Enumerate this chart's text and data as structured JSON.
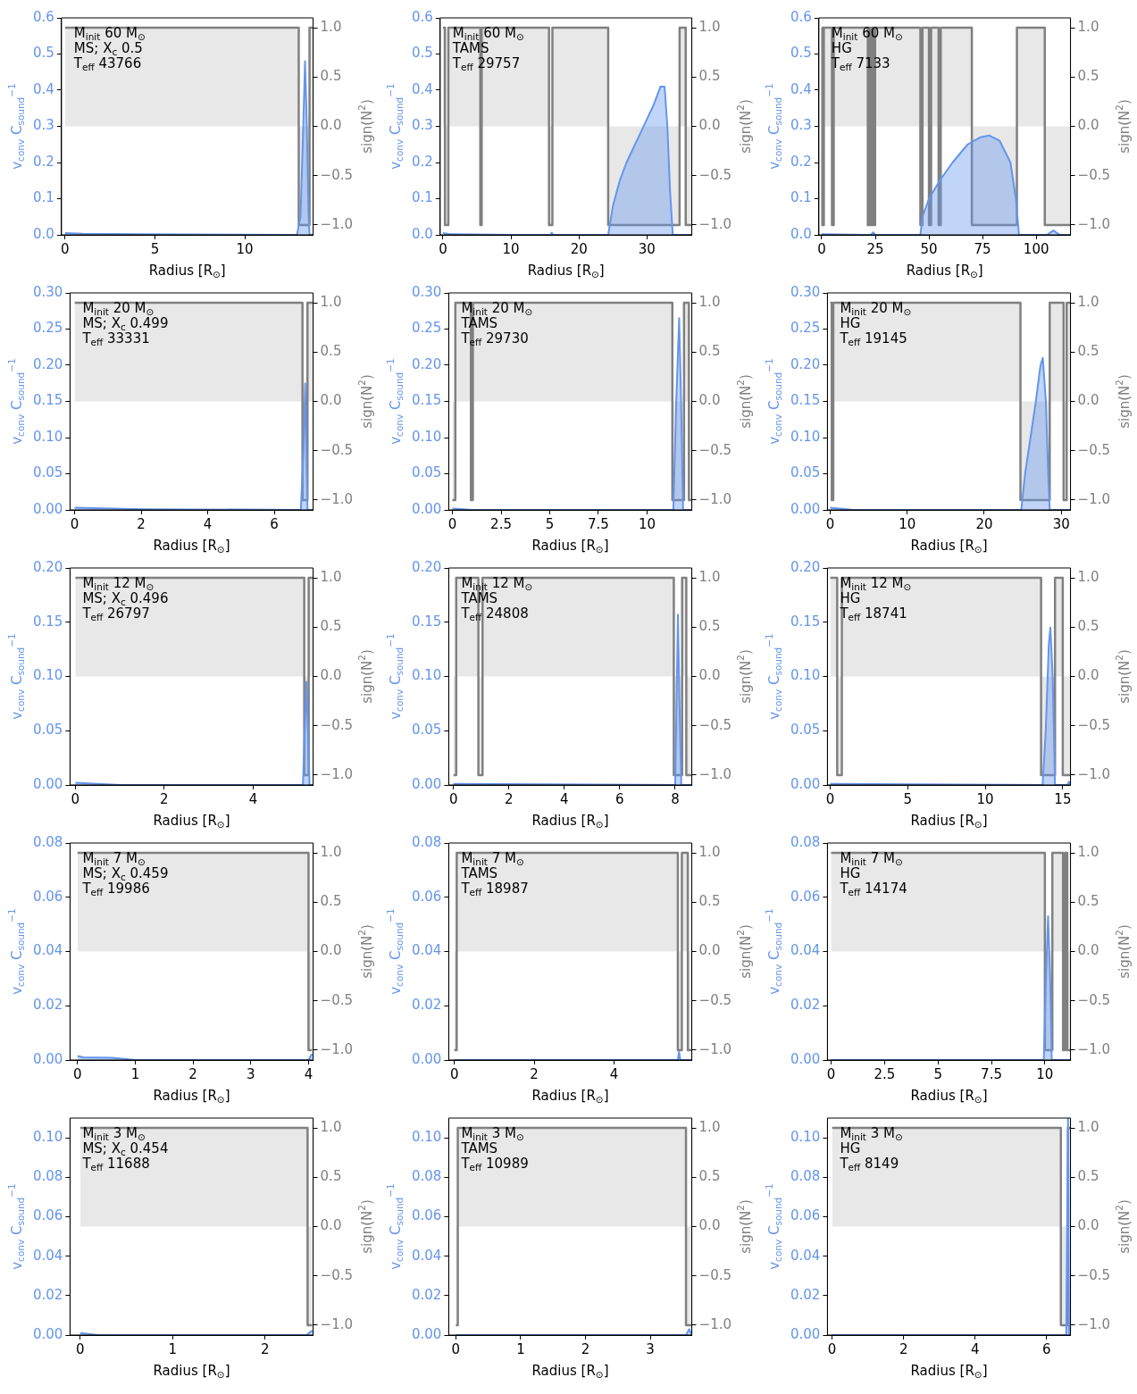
{
  "chart_data": [
    {
      "type": "line",
      "xlabel": "Radius [R$_{⊙}$]",
      "ylabel": "v$_{conv}$ C$_{sound}$$^{−1}$",
      "y2label": "sign(N$^{2}$)",
      "annotations": [
        "M$_{init}$ 60 M$_{⊙}$",
        "MS; X$_{c}$ 0.5",
        "T$_{eff}$ 43766"
      ],
      "xlim": [
        -0.2,
        13.8
      ],
      "xticks": [
        0,
        5,
        10
      ],
      "ylim": [
        0,
        0.6
      ],
      "yticks": [
        {
          "value": 0,
          "label": "0.0"
        },
        {
          "value": 0.1,
          "label": "0.1"
        },
        {
          "value": 0.2,
          "label": "0.2"
        },
        {
          "value": 0.3,
          "label": "0.3"
        },
        {
          "value": 0.4,
          "label": "0.4"
        },
        {
          "value": 0.5,
          "label": "0.5"
        },
        {
          "value": 0.6,
          "label": "0.6"
        }
      ],
      "y2lim": [
        -1.1,
        1.1
      ],
      "y2ticks": [
        {
          "value": -1,
          "label": "−1.0"
        },
        {
          "value": -0.5,
          "label": "−0.5"
        },
        {
          "value": 0,
          "label": "0.0"
        },
        {
          "value": 0.5,
          "label": "0.5"
        },
        {
          "value": 1,
          "label": "1.0"
        }
      ],
      "series": [
        {
          "type": "area",
          "color": "#6495ed",
          "x": [
            0,
            1,
            4,
            12.9,
            13.1,
            13.25,
            13.35,
            13.45,
            13.55,
            13.6,
            13.8
          ],
          "values": [
            0.005,
            0.003,
            0.002,
            0,
            0.05,
            0.3,
            0.48,
            0.3,
            0.05,
            0,
            0
          ]
        },
        {
          "type": "step",
          "axis": "y2",
          "color": "#808080",
          "x": [
            0,
            13.0,
            13.6,
            13.8
          ],
          "values": [
            1,
            -1,
            1,
            1
          ]
        }
      ]
    },
    {
      "type": "line",
      "xlabel": "Radius [R$_{⊙}$]",
      "ylabel": "v$_{conv}$ C$_{sound}$$^{−1}$",
      "y2label": "sign(N$^{2}$)",
      "annotations": [
        "M$_{init}$ 60 M$_{⊙}$",
        "TAMS",
        "T$_{eff}$ 29757"
      ],
      "xlim": [
        -0.4,
        36.6
      ],
      "xticks": [
        0,
        10,
        20,
        30
      ],
      "ylim": [
        0,
        0.6
      ],
      "yticks": [
        {
          "value": 0,
          "label": "0.0"
        },
        {
          "value": 0.1,
          "label": "0.1"
        },
        {
          "value": 0.2,
          "label": "0.2"
        },
        {
          "value": 0.3,
          "label": "0.3"
        },
        {
          "value": 0.4,
          "label": "0.4"
        },
        {
          "value": 0.5,
          "label": "0.5"
        },
        {
          "value": 0.6,
          "label": "0.6"
        }
      ],
      "y2lim": [
        -1.1,
        1.1
      ],
      "y2ticks": [
        {
          "value": -1,
          "label": "−1.0"
        },
        {
          "value": -0.5,
          "label": "−0.5"
        },
        {
          "value": 0,
          "label": "0.0"
        },
        {
          "value": 0.5,
          "label": "0.5"
        },
        {
          "value": 1,
          "label": "1.0"
        }
      ],
      "series": [
        {
          "type": "area",
          "color": "#6495ed",
          "x": [
            0,
            1,
            10,
            15.8,
            16,
            16.2,
            24.3,
            25,
            26,
            27,
            28,
            29,
            30,
            31,
            32,
            32.6,
            33,
            33.4,
            33.8,
            36.6
          ],
          "values": [
            0.005,
            0.002,
            0,
            0,
            0.006,
            0,
            0,
            0.08,
            0.15,
            0.2,
            0.24,
            0.28,
            0.32,
            0.36,
            0.41,
            0.41,
            0.3,
            0.12,
            0,
            0
          ]
        },
        {
          "type": "step",
          "axis": "y2",
          "color": "#808080",
          "x": [
            0,
            0.3,
            0.8,
            5.5,
            5.7,
            15.6,
            16.1,
            24.3,
            34.8,
            35.7,
            36.6
          ],
          "values": [
            1,
            -1,
            1,
            -1,
            1,
            -1,
            1,
            -1,
            1,
            -1,
            -1
          ]
        }
      ]
    },
    {
      "type": "line",
      "xlabel": "Radius [R$_{⊙}$]",
      "ylabel": "v$_{conv}$ C$_{sound}$$^{−1}$",
      "y2label": "sign(N$^{2}$)",
      "annotations": [
        "M$_{init}$ 60 M$_{⊙}$",
        "HG",
        "T$_{eff}$ 7133"
      ],
      "xlim": [
        -1.3,
        116
      ],
      "xticks": [
        0,
        25,
        50,
        75,
        100
      ],
      "ylim": [
        0,
        0.6
      ],
      "yticks": [
        {
          "value": 0,
          "label": "0.0"
        },
        {
          "value": 0.1,
          "label": "0.1"
        },
        {
          "value": 0.2,
          "label": "0.2"
        },
        {
          "value": 0.3,
          "label": "0.3"
        },
        {
          "value": 0.4,
          "label": "0.4"
        },
        {
          "value": 0.5,
          "label": "0.5"
        },
        {
          "value": 0.6,
          "label": "0.6"
        }
      ],
      "y2lim": [
        -1.1,
        1.1
      ],
      "y2ticks": [
        {
          "value": -1,
          "label": "−1.0"
        },
        {
          "value": -0.5,
          "label": "−0.5"
        },
        {
          "value": 0,
          "label": "0.0"
        },
        {
          "value": 0.5,
          "label": "0.5"
        },
        {
          "value": 1,
          "label": "1.0"
        }
      ],
      "series": [
        {
          "type": "area",
          "color": "#6495ed",
          "x": [
            0,
            20,
            23,
            24,
            25,
            45,
            46,
            47,
            50,
            55,
            61,
            68,
            74,
            78,
            83,
            88,
            90.5,
            92,
            105,
            108,
            111,
            116
          ],
          "values": [
            0.002,
            0,
            0,
            0.007,
            0,
            0,
            0,
            0.05,
            0.1,
            0.15,
            0.2,
            0.25,
            0.27,
            0.275,
            0.26,
            0.2,
            0.1,
            0,
            0,
            0.012,
            0,
            0
          ]
        },
        {
          "type": "step",
          "axis": "y2",
          "color": "#808080",
          "x": [
            0,
            0.3,
            1,
            4.8,
            5.6,
            21.5,
            22.3,
            22.8,
            23.6,
            24.2,
            24.9,
            46,
            47,
            50,
            51,
            54.5,
            55.5,
            70,
            91,
            104,
            116
          ],
          "values": [
            1,
            -1,
            1,
            -1,
            1,
            -1,
            1,
            -1,
            1,
            -1,
            1,
            -1,
            1,
            -1,
            1,
            -1,
            1,
            -1,
            1,
            -1,
            -1
          ]
        }
      ]
    },
    {
      "type": "line",
      "xlabel": "Radius [R$_{⊙}$]",
      "ylabel": "v$_{conv}$ C$_{sound}$$^{−1}$",
      "y2label": "sign(N$^{2}$)",
      "annotations": [
        "M$_{init}$ 20 M$_{⊙}$",
        "MS; X$_{c}$ 0.499",
        "T$_{eff}$ 33331"
      ],
      "xlim": [
        -0.14,
        7.17
      ],
      "xticks": [
        0,
        2,
        4,
        6
      ],
      "ylim": [
        0,
        0.3
      ],
      "yticks": [
        {
          "value": 0,
          "label": "0.00"
        },
        {
          "value": 0.05,
          "label": "0.05"
        },
        {
          "value": 0.1,
          "label": "0.10"
        },
        {
          "value": 0.15,
          "label": "0.15"
        },
        {
          "value": 0.2,
          "label": "0.20"
        },
        {
          "value": 0.25,
          "label": "0.25"
        },
        {
          "value": 0.3,
          "label": "0.30"
        }
      ],
      "y2lim": [
        -1.1,
        1.1
      ],
      "y2ticks": [
        {
          "value": -1,
          "label": "−1.0"
        },
        {
          "value": -0.5,
          "label": "−0.5"
        },
        {
          "value": 0,
          "label": "0.0"
        },
        {
          "value": 0.5,
          "label": "0.5"
        },
        {
          "value": 1,
          "label": "1.0"
        }
      ],
      "series": [
        {
          "type": "area",
          "color": "#6495ed",
          "x": [
            0,
            2,
            6.8,
            6.88,
            6.93,
            6.97,
            7.0,
            7.17
          ],
          "values": [
            0.003,
            0.001,
            0,
            0.08,
            0.175,
            0.08,
            0,
            0
          ]
        },
        {
          "type": "step",
          "axis": "y2",
          "color": "#808080",
          "x": [
            0,
            6.85,
            7.0,
            7.17
          ],
          "values": [
            1,
            -1,
            1,
            1
          ]
        }
      ]
    },
    {
      "type": "line",
      "xlabel": "Radius [R$_{⊙}$]",
      "ylabel": "v$_{conv}$ C$_{sound}$$^{−1}$",
      "y2label": "sign(N$^{2}$)",
      "annotations": [
        "M$_{init}$ 20 M$_{⊙}$",
        "TAMS",
        "T$_{eff}$ 29730"
      ],
      "xlim": [
        -0.19,
        12.3
      ],
      "xticks": [
        0,
        2.5,
        5,
        7.5,
        10
      ],
      "ylim": [
        0,
        0.3
      ],
      "yticks": [
        {
          "value": 0,
          "label": "0.00"
        },
        {
          "value": 0.05,
          "label": "0.05"
        },
        {
          "value": 0.1,
          "label": "0.10"
        },
        {
          "value": 0.15,
          "label": "0.15"
        },
        {
          "value": 0.2,
          "label": "0.20"
        },
        {
          "value": 0.25,
          "label": "0.25"
        },
        {
          "value": 0.3,
          "label": "0.30"
        }
      ],
      "y2lim": [
        -1.1,
        1.1
      ],
      "y2ticks": [
        {
          "value": -1,
          "label": "−1.0"
        },
        {
          "value": -0.5,
          "label": "−0.5"
        },
        {
          "value": 0,
          "label": "0.0"
        },
        {
          "value": 0.5,
          "label": "0.5"
        },
        {
          "value": 1,
          "label": "1.0"
        }
      ],
      "series": [
        {
          "type": "area",
          "color": "#6495ed",
          "x": [
            0,
            1,
            11.35,
            11.5,
            11.65,
            11.75,
            11.85,
            12.3
          ],
          "values": [
            0.002,
            0,
            0,
            0.15,
            0.265,
            0.15,
            0,
            0
          ]
        },
        {
          "type": "step",
          "axis": "y2",
          "color": "#808080",
          "x": [
            0,
            0.15,
            0.95,
            1.05,
            11.3,
            11.9,
            12.15,
            12.3
          ],
          "values": [
            -1,
            1,
            -1,
            1,
            -1,
            1,
            -1,
            -1
          ]
        }
      ]
    },
    {
      "type": "line",
      "xlabel": "Radius [R$_{⊙}$]",
      "ylabel": "v$_{conv}$ C$_{sound}$$^{−1}$",
      "y2label": "sign(N$^{2}$)",
      "annotations": [
        "M$_{init}$ 20 M$_{⊙}$",
        "HG",
        "T$_{eff}$ 19145"
      ],
      "xlim": [
        -0.36,
        31.2
      ],
      "xticks": [
        0,
        10,
        20,
        30
      ],
      "ylim": [
        0,
        0.3
      ],
      "yticks": [
        {
          "value": 0,
          "label": "0.00"
        },
        {
          "value": 0.05,
          "label": "0.05"
        },
        {
          "value": 0.1,
          "label": "0.10"
        },
        {
          "value": 0.15,
          "label": "0.15"
        },
        {
          "value": 0.2,
          "label": "0.20"
        },
        {
          "value": 0.25,
          "label": "0.25"
        },
        {
          "value": 0.3,
          "label": "0.30"
        }
      ],
      "y2lim": [
        -1.1,
        1.1
      ],
      "y2ticks": [
        {
          "value": -1,
          "label": "−1.0"
        },
        {
          "value": -0.5,
          "label": "−0.5"
        },
        {
          "value": 0,
          "label": "0.0"
        },
        {
          "value": 0.5,
          "label": "0.5"
        },
        {
          "value": 1,
          "label": "1.0"
        }
      ],
      "series": [
        {
          "type": "area",
          "color": "#6495ed",
          "x": [
            0,
            3,
            24.8,
            25.3,
            26,
            26.7,
            27.3,
            27.6,
            28,
            28.3,
            28.5,
            31.2
          ],
          "values": [
            0.003,
            0,
            0,
            0.05,
            0.1,
            0.15,
            0.2,
            0.21,
            0.15,
            0.05,
            0,
            0
          ]
        },
        {
          "type": "step",
          "axis": "y2",
          "color": "#808080",
          "x": [
            0,
            0.2,
            0.4,
            24.7,
            28.5,
            30.3,
            30.7,
            31.2
          ],
          "values": [
            1,
            -1,
            1,
            -1,
            1,
            -1,
            1,
            1
          ]
        }
      ]
    },
    {
      "type": "line",
      "xlabel": "Radius [R$_{⊙}$]",
      "ylabel": "v$_{conv}$ C$_{sound}$$^{−1}$",
      "y2label": "sign(N$^{2}$)",
      "annotations": [
        "M$_{init}$ 12 M$_{⊙}$",
        "MS; X$_{c}$ 0.496",
        "T$_{eff}$ 26797"
      ],
      "xlim": [
        -0.12,
        5.35
      ],
      "xticks": [
        0,
        2,
        4
      ],
      "ylim": [
        0,
        0.2
      ],
      "yticks": [
        {
          "value": 0,
          "label": "0.00"
        },
        {
          "value": 0.05,
          "label": "0.05"
        },
        {
          "value": 0.1,
          "label": "0.10"
        },
        {
          "value": 0.15,
          "label": "0.15"
        },
        {
          "value": 0.2,
          "label": "0.20"
        }
      ],
      "y2lim": [
        -1.1,
        1.1
      ],
      "y2ticks": [
        {
          "value": -1,
          "label": "−1.0"
        },
        {
          "value": -0.5,
          "label": "−0.5"
        },
        {
          "value": 0,
          "label": "0.0"
        },
        {
          "value": 0.5,
          "label": "0.5"
        },
        {
          "value": 1,
          "label": "1.0"
        }
      ],
      "series": [
        {
          "type": "area",
          "color": "#6495ed",
          "x": [
            0,
            1,
            5.12,
            5.2,
            5.27,
            5.35
          ],
          "values": [
            0.002,
            0,
            0,
            0.095,
            0,
            0
          ]
        },
        {
          "type": "step",
          "axis": "y2",
          "color": "#808080",
          "x": [
            0,
            5.15,
            5.25,
            5.35
          ],
          "values": [
            1,
            -1,
            1,
            1
          ]
        }
      ]
    },
    {
      "type": "line",
      "xlabel": "Radius [R$_{⊙}$]",
      "ylabel": "v$_{conv}$ C$_{sound}$$^{−1}$",
      "y2label": "sign(N$^{2}$)",
      "annotations": [
        "M$_{init}$ 12 M$_{⊙}$",
        "TAMS",
        "T$_{eff}$ 24808"
      ],
      "xlim": [
        -0.17,
        8.6
      ],
      "xticks": [
        0,
        2,
        4,
        6,
        8
      ],
      "ylim": [
        0,
        0.2
      ],
      "yticks": [
        {
          "value": 0,
          "label": "0.00"
        },
        {
          "value": 0.05,
          "label": "0.05"
        },
        {
          "value": 0.1,
          "label": "0.10"
        },
        {
          "value": 0.15,
          "label": "0.15"
        },
        {
          "value": 0.2,
          "label": "0.20"
        }
      ],
      "y2lim": [
        -1.1,
        1.1
      ],
      "y2ticks": [
        {
          "value": -1,
          "label": "−1.0"
        },
        {
          "value": -0.5,
          "label": "−0.5"
        },
        {
          "value": 0,
          "label": "0.0"
        },
        {
          "value": 0.5,
          "label": "0.5"
        },
        {
          "value": 1,
          "label": "1.0"
        }
      ],
      "series": [
        {
          "type": "area",
          "color": "#6495ed",
          "x": [
            0,
            8,
            8.05,
            8.1,
            8.15,
            8.22,
            8.6
          ],
          "values": [
            0.001,
            0,
            0.08,
            0.157,
            0.08,
            0,
            0
          ]
        },
        {
          "type": "step",
          "axis": "y2",
          "color": "#808080",
          "x": [
            0,
            0.1,
            0.9,
            1.05,
            7.95,
            8.25,
            8.4,
            8.6
          ],
          "values": [
            -1,
            1,
            -1,
            1,
            -1,
            1,
            -1,
            -1
          ]
        }
      ]
    },
    {
      "type": "line",
      "xlabel": "Radius [R$_{⊙}$]",
      "ylabel": "v$_{conv}$ C$_{sound}$$^{−1}$",
      "y2label": "sign(N$^{2}$)",
      "annotations": [
        "M$_{init}$ 12 M$_{⊙}$",
        "HG",
        "T$_{eff}$ 18741"
      ],
      "xlim": [
        -0.18,
        15.5
      ],
      "xticks": [
        0,
        5,
        10,
        15
      ],
      "ylim": [
        0,
        0.2
      ],
      "yticks": [
        {
          "value": 0,
          "label": "0.00"
        },
        {
          "value": 0.05,
          "label": "0.05"
        },
        {
          "value": 0.1,
          "label": "0.10"
        },
        {
          "value": 0.15,
          "label": "0.15"
        },
        {
          "value": 0.2,
          "label": "0.20"
        }
      ],
      "y2lim": [
        -1.1,
        1.1
      ],
      "y2ticks": [
        {
          "value": -1,
          "label": "−1.0"
        },
        {
          "value": -0.5,
          "label": "−0.5"
        },
        {
          "value": 0,
          "label": "0.0"
        },
        {
          "value": 0.5,
          "label": "0.5"
        },
        {
          "value": 1,
          "label": "1.0"
        }
      ],
      "series": [
        {
          "type": "area",
          "color": "#6495ed",
          "x": [
            0,
            13.7,
            13.9,
            14.1,
            14.2,
            14.35,
            14.5,
            15.3,
            15.4,
            15.5
          ],
          "values": [
            0.001,
            0,
            0.05,
            0.13,
            0.145,
            0.1,
            0,
            0,
            0.003,
            0
          ]
        },
        {
          "type": "step",
          "axis": "y2",
          "color": "#808080",
          "x": [
            0,
            0.45,
            0.75,
            13.6,
            14.5,
            15.0,
            15.5
          ],
          "values": [
            1,
            -1,
            1,
            -1,
            1,
            -1,
            -1
          ]
        }
      ]
    },
    {
      "type": "line",
      "xlabel": "Radius [R$_{⊙}$]",
      "ylabel": "v$_{conv}$ C$_{sound}$$^{−1}$",
      "y2label": "sign(N$^{2}$)",
      "annotations": [
        "M$_{init}$ 7 M$_{⊙}$",
        "MS; X$_{c}$ 0.459",
        "T$_{eff}$ 19986"
      ],
      "xlim": [
        -0.13,
        4.08
      ],
      "xticks": [
        0,
        1,
        2,
        3,
        4
      ],
      "ylim": [
        0,
        0.08
      ],
      "yticks": [
        {
          "value": 0,
          "label": "0.00"
        },
        {
          "value": 0.02,
          "label": "0.02"
        },
        {
          "value": 0.04,
          "label": "0.04"
        },
        {
          "value": 0.06,
          "label": "0.06"
        },
        {
          "value": 0.08,
          "label": "0.08"
        }
      ],
      "y2lim": [
        -1.1,
        1.1
      ],
      "y2ticks": [
        {
          "value": -1,
          "label": "−1.0"
        },
        {
          "value": -0.5,
          "label": "−0.5"
        },
        {
          "value": 0,
          "label": "0.0"
        },
        {
          "value": 0.5,
          "label": "0.5"
        },
        {
          "value": 1,
          "label": "1.0"
        }
      ],
      "series": [
        {
          "type": "area",
          "color": "#6495ed",
          "x": [
            0,
            0.1,
            0.6,
            1,
            4.0,
            4.05,
            4.08
          ],
          "values": [
            0.0015,
            0.001,
            0.0008,
            0,
            0,
            0.002,
            0.002
          ]
        },
        {
          "type": "step",
          "axis": "y2",
          "color": "#808080",
          "x": [
            0,
            2,
            4.0,
            4.06
          ],
          "values": [
            1,
            1,
            -1,
            -1
          ]
        }
      ]
    },
    {
      "type": "line",
      "xlabel": "Radius [R$_{⊙}$]",
      "ylabel": "v$_{conv}$ C$_{sound}$$^{−1}$",
      "y2label": "sign(N$^{2}$)",
      "annotations": [
        "M$_{init}$ 7 M$_{⊙}$",
        "TAMS",
        "T$_{eff}$ 18987"
      ],
      "xlim": [
        -0.14,
        5.95
      ],
      "xticks": [
        0,
        2,
        4
      ],
      "ylim": [
        0,
        0.08
      ],
      "yticks": [
        {
          "value": 0,
          "label": "0.00"
        },
        {
          "value": 0.02,
          "label": "0.02"
        },
        {
          "value": 0.04,
          "label": "0.04"
        },
        {
          "value": 0.06,
          "label": "0.06"
        },
        {
          "value": 0.08,
          "label": "0.08"
        }
      ],
      "y2lim": [
        -1.1,
        1.1
      ],
      "y2ticks": [
        {
          "value": -1,
          "label": "−1.0"
        },
        {
          "value": -0.5,
          "label": "−0.5"
        },
        {
          "value": 0,
          "label": "0.0"
        },
        {
          "value": 0.5,
          "label": "0.5"
        },
        {
          "value": 1,
          "label": "1.0"
        }
      ],
      "series": [
        {
          "type": "area",
          "color": "#6495ed",
          "x": [
            0,
            5.6,
            5.63,
            5.66,
            5.95
          ],
          "values": [
            0,
            0,
            0.003,
            0,
            0
          ]
        },
        {
          "type": "step",
          "axis": "y2",
          "color": "#808080",
          "x": [
            0,
            0.06,
            5.6,
            5.7,
            5.85,
            5.95
          ],
          "values": [
            -1,
            1,
            -1,
            1,
            -1,
            -1
          ]
        }
      ]
    },
    {
      "type": "line",
      "xlabel": "Radius [R$_{⊙}$]",
      "ylabel": "v$_{conv}$ C$_{sound}$$^{−1}$",
      "y2label": "sign(N$^{2}$)",
      "annotations": [
        "M$_{init}$ 7 M$_{⊙}$",
        "HG",
        "T$_{eff}$ 14174"
      ],
      "xlim": [
        -0.17,
        11.2
      ],
      "xticks": [
        0,
        2.5,
        5,
        7.5,
        10
      ],
      "ylim": [
        0,
        0.08
      ],
      "yticks": [
        {
          "value": 0,
          "label": "0.00"
        },
        {
          "value": 0.02,
          "label": "0.02"
        },
        {
          "value": 0.04,
          "label": "0.04"
        },
        {
          "value": 0.06,
          "label": "0.06"
        },
        {
          "value": 0.08,
          "label": "0.08"
        }
      ],
      "y2lim": [
        -1.1,
        1.1
      ],
      "y2ticks": [
        {
          "value": -1,
          "label": "−1.0"
        },
        {
          "value": -0.5,
          "label": "−0.5"
        },
        {
          "value": 0,
          "label": "0.0"
        },
        {
          "value": 0.5,
          "label": "0.5"
        },
        {
          "value": 1,
          "label": "1.0"
        }
      ],
      "series": [
        {
          "type": "area",
          "color": "#6495ed",
          "x": [
            0,
            9.95,
            10.05,
            10.15,
            10.25,
            10.32,
            11.2
          ],
          "values": [
            0,
            0,
            0.03,
            0.053,
            0.03,
            0,
            0
          ]
        },
        {
          "type": "step",
          "axis": "y2",
          "color": "#808080",
          "x": [
            0,
            10,
            10.35,
            10.85,
            10.95,
            11.05,
            11.2
          ],
          "values": [
            1,
            -1,
            1,
            -1,
            1,
            -1,
            -1
          ]
        }
      ]
    },
    {
      "type": "line",
      "xlabel": "Radius [R$_{⊙}$]",
      "ylabel": "v$_{conv}$ C$_{sound}$$^{−1}$",
      "y2label": "sign(N$^{2}$)",
      "annotations": [
        "M$_{init}$ 3 M$_{⊙}$",
        "MS; X$_{c}$ 0.454",
        "T$_{eff}$ 11688"
      ],
      "xlim": [
        -0.11,
        2.52
      ],
      "xticks": [
        0,
        1,
        2
      ],
      "ylim": [
        0,
        0.11
      ],
      "yticks": [
        {
          "value": 0,
          "label": "0.00"
        },
        {
          "value": 0.02,
          "label": "0.02"
        },
        {
          "value": 0.04,
          "label": "0.04"
        },
        {
          "value": 0.06,
          "label": "0.06"
        },
        {
          "value": 0.08,
          "label": "0.08"
        },
        {
          "value": 0.1,
          "label": "0.10"
        }
      ],
      "y2lim": [
        -1.1,
        1.1
      ],
      "y2ticks": [
        {
          "value": -1,
          "label": "−1.0"
        },
        {
          "value": -0.5,
          "label": "−0.5"
        },
        {
          "value": 0,
          "label": "0.0"
        },
        {
          "value": 0.5,
          "label": "0.5"
        },
        {
          "value": 1,
          "label": "1.0"
        }
      ],
      "series": [
        {
          "type": "area",
          "color": "#6495ed",
          "x": [
            0,
            0.2,
            2.45,
            2.5,
            2.52
          ],
          "values": [
            0.001,
            0,
            0,
            0.002,
            0.002
          ]
        },
        {
          "type": "step",
          "axis": "y2",
          "color": "#808080",
          "x": [
            0,
            1.2,
            2.46,
            2.51
          ],
          "values": [
            1,
            1,
            -1,
            -1
          ]
        }
      ]
    },
    {
      "type": "line",
      "xlabel": "Radius [R$_{⊙}$]",
      "ylabel": "v$_{conv}$ C$_{sound}$$^{−1}$",
      "y2label": "sign(N$^{2}$)",
      "annotations": [
        "M$_{init}$ 3 M$_{⊙}$",
        "TAMS",
        "T$_{eff}$ 10989"
      ],
      "xlim": [
        -0.11,
        3.64
      ],
      "xticks": [
        0,
        1,
        2,
        3
      ],
      "ylim": [
        0,
        0.11
      ],
      "yticks": [
        {
          "value": 0,
          "label": "0.00"
        },
        {
          "value": 0.02,
          "label": "0.02"
        },
        {
          "value": 0.04,
          "label": "0.04"
        },
        {
          "value": 0.06,
          "label": "0.06"
        },
        {
          "value": 0.08,
          "label": "0.08"
        },
        {
          "value": 0.1,
          "label": "0.10"
        }
      ],
      "y2lim": [
        -1.1,
        1.1
      ],
      "y2ticks": [
        {
          "value": -1,
          "label": "−1.0"
        },
        {
          "value": -0.5,
          "label": "−0.5"
        },
        {
          "value": 0,
          "label": "0.0"
        },
        {
          "value": 0.5,
          "label": "0.5"
        },
        {
          "value": 1,
          "label": "1.0"
        }
      ],
      "series": [
        {
          "type": "area",
          "color": "#6495ed",
          "x": [
            0,
            3.55,
            3.6,
            3.64
          ],
          "values": [
            0,
            0,
            0.003,
            0
          ]
        },
        {
          "type": "step",
          "axis": "y2",
          "color": "#808080",
          "x": [
            0,
            0.03,
            3.55,
            3.64
          ],
          "values": [
            -1,
            1,
            -1,
            -1
          ]
        }
      ]
    },
    {
      "type": "line",
      "xlabel": "Radius [R$_{⊙}$]",
      "ylabel": "v$_{conv}$ C$_{sound}$$^{−1}$",
      "y2label": "sign(N$^{2}$)",
      "annotations": [
        "M$_{init}$ 3 M$_{⊙}$",
        "HG",
        "T$_{eff}$ 8149"
      ],
      "xlim": [
        -0.13,
        6.67
      ],
      "xticks": [
        0,
        2,
        4,
        6
      ],
      "ylim": [
        0,
        0.11
      ],
      "yticks": [
        {
          "value": 0,
          "label": "0.00"
        },
        {
          "value": 0.02,
          "label": "0.02"
        },
        {
          "value": 0.04,
          "label": "0.04"
        },
        {
          "value": 0.06,
          "label": "0.06"
        },
        {
          "value": 0.08,
          "label": "0.08"
        },
        {
          "value": 0.1,
          "label": "0.10"
        }
      ],
      "y2lim": [
        -1.1,
        1.1
      ],
      "y2ticks": [
        {
          "value": -1,
          "label": "−1.0"
        },
        {
          "value": -0.5,
          "label": "−0.5"
        },
        {
          "value": 0,
          "label": "0.0"
        },
        {
          "value": 0.5,
          "label": "0.5"
        },
        {
          "value": 1,
          "label": "1.0"
        }
      ],
      "series": [
        {
          "type": "area",
          "color": "#6495ed",
          "x": [
            0,
            6.55,
            6.6,
            6.63,
            6.67
          ],
          "values": [
            0,
            0,
            0.11,
            0,
            0
          ]
        },
        {
          "type": "step",
          "axis": "y2",
          "color": "#808080",
          "x": [
            0,
            6.4,
            6.6,
            6.67
          ],
          "values": [
            1,
            -1,
            1,
            1
          ]
        }
      ]
    }
  ]
}
